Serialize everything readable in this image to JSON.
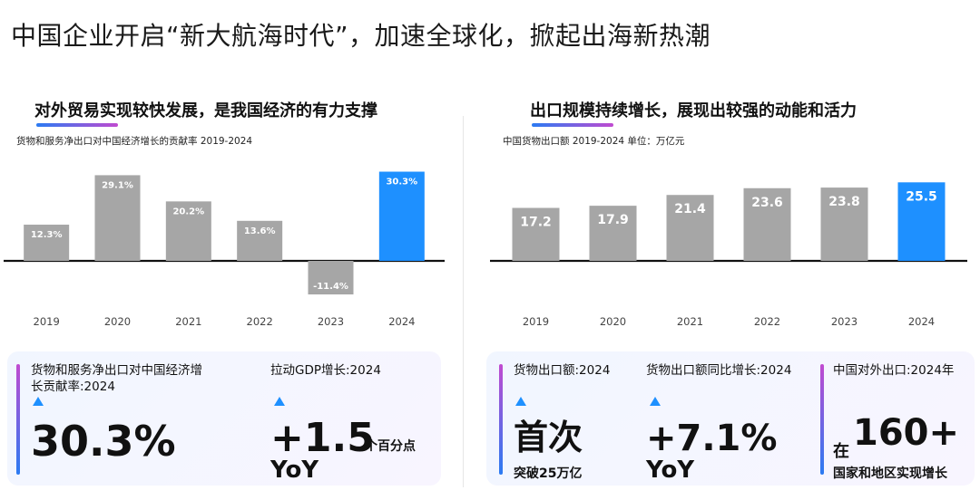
{
  "page": {
    "title": "中国企业开启“新大航海时代”，加速全球化，掀起出海新热潮"
  },
  "left": {
    "section_title": "对外贸易实现较快发展，是我国经济的有力支撑",
    "chart_subtitle": "货物和服务净出口对中国经济增长的贡献率 2019-2024",
    "kpis": [
      {
        "label": "货物和服务净出口对中国经济增长贡献率:2024",
        "value": "30.3%",
        "unit": ""
      },
      {
        "label": "拉动GDP增长:2024",
        "value": "+1.5",
        "unit": "个百分点",
        "suffix": "YoY"
      }
    ]
  },
  "right": {
    "section_title": "出口规模持续增长，展现出较强的动能和活力",
    "chart_subtitle": "中国货物出口额 2019-2024   单位：万亿元",
    "kpis": [
      {
        "label": "货物出口额:2024",
        "value": "首次",
        "sub": "突破25万亿"
      },
      {
        "label": "货物出口额同比增长:2024",
        "value": "+7.1%",
        "suffix": "YoY"
      },
      {
        "label": "中国对外出口:2024年",
        "prefix": "在",
        "value": "160+",
        "sub": "国家和地区实现增长"
      }
    ]
  },
  "colors": {
    "gray_bar": "#a6a6a6",
    "highlight_bar": "#1e90ff",
    "axis": "#111111"
  },
  "chart_data": [
    {
      "type": "bar",
      "categories": [
        "2019",
        "2020",
        "2021",
        "2022",
        "2023",
        "2024"
      ],
      "values": [
        12.3,
        29.1,
        20.2,
        13.6,
        -11.4,
        30.3
      ],
      "labels": [
        "12.3%",
        "29.1%",
        "20.2%",
        "13.6%",
        "-11.4%",
        "30.3%"
      ],
      "highlight_index": 5,
      "title": "货物和服务净出口对中国经济增长的贡献率 2019-2024",
      "ylim": [
        -12,
        32
      ]
    },
    {
      "type": "bar",
      "categories": [
        "2019",
        "2020",
        "2021",
        "2022",
        "2023",
        "2024"
      ],
      "values": [
        17.2,
        17.9,
        21.4,
        23.6,
        23.8,
        25.5
      ],
      "labels": [
        "17.2",
        "17.9",
        "21.4",
        "23.6",
        "23.8",
        "25.5"
      ],
      "highlight_index": 5,
      "title": "中国货物出口额 2019-2024 单位：万亿元",
      "ylim": [
        0,
        26
      ]
    }
  ]
}
